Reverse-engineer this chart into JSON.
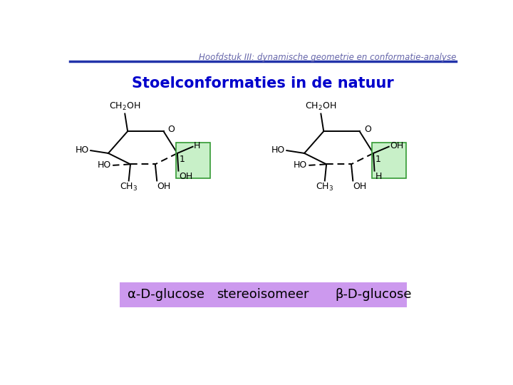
{
  "header_text": "Hoofdstuk III: dynamische geometrie en conformatie-analyse",
  "header_color": "#6666aa",
  "header_line_color": "#2233aa",
  "title_text": "Stoelconformaties in de natuur",
  "title_color": "#0000cc",
  "bg_color": "#ffffff",
  "green_box_color": "#c8f0c8",
  "green_box_edge": "#339933",
  "bottom_banner_color": "#cc99ee",
  "bottom_text_left": "α-D-glucose",
  "bottom_text_mid": "stereoisomeer",
  "bottom_text_right": "β-D-glucose",
  "bottom_text_color": "#000000"
}
